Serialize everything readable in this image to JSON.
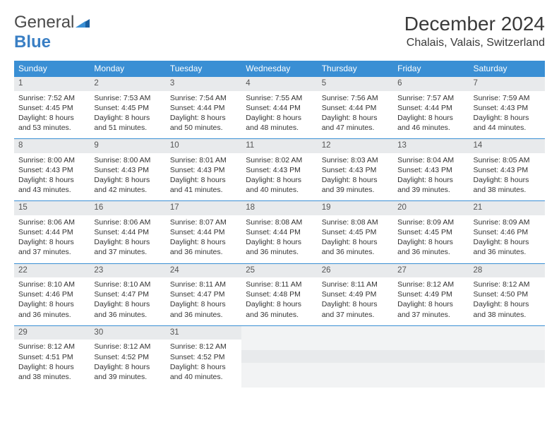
{
  "logo": {
    "general": "General",
    "blue": "Blue"
  },
  "title": "December 2024",
  "location": "Chalais, Valais, Switzerland",
  "colors": {
    "header_bg": "#3a8fd4",
    "header_text": "#ffffff",
    "daynum_bg": "#e8eaec",
    "border": "#3a8fd4",
    "logo_blue": "#3a7fc4"
  },
  "day_headers": [
    "Sunday",
    "Monday",
    "Tuesday",
    "Wednesday",
    "Thursday",
    "Friday",
    "Saturday"
  ],
  "weeks": [
    [
      {
        "n": "1",
        "sr": "Sunrise: 7:52 AM",
        "ss": "Sunset: 4:45 PM",
        "d1": "Daylight: 8 hours",
        "d2": "and 53 minutes."
      },
      {
        "n": "2",
        "sr": "Sunrise: 7:53 AM",
        "ss": "Sunset: 4:45 PM",
        "d1": "Daylight: 8 hours",
        "d2": "and 51 minutes."
      },
      {
        "n": "3",
        "sr": "Sunrise: 7:54 AM",
        "ss": "Sunset: 4:44 PM",
        "d1": "Daylight: 8 hours",
        "d2": "and 50 minutes."
      },
      {
        "n": "4",
        "sr": "Sunrise: 7:55 AM",
        "ss": "Sunset: 4:44 PM",
        "d1": "Daylight: 8 hours",
        "d2": "and 48 minutes."
      },
      {
        "n": "5",
        "sr": "Sunrise: 7:56 AM",
        "ss": "Sunset: 4:44 PM",
        "d1": "Daylight: 8 hours",
        "d2": "and 47 minutes."
      },
      {
        "n": "6",
        "sr": "Sunrise: 7:57 AM",
        "ss": "Sunset: 4:44 PM",
        "d1": "Daylight: 8 hours",
        "d2": "and 46 minutes."
      },
      {
        "n": "7",
        "sr": "Sunrise: 7:59 AM",
        "ss": "Sunset: 4:43 PM",
        "d1": "Daylight: 8 hours",
        "d2": "and 44 minutes."
      }
    ],
    [
      {
        "n": "8",
        "sr": "Sunrise: 8:00 AM",
        "ss": "Sunset: 4:43 PM",
        "d1": "Daylight: 8 hours",
        "d2": "and 43 minutes."
      },
      {
        "n": "9",
        "sr": "Sunrise: 8:00 AM",
        "ss": "Sunset: 4:43 PM",
        "d1": "Daylight: 8 hours",
        "d2": "and 42 minutes."
      },
      {
        "n": "10",
        "sr": "Sunrise: 8:01 AM",
        "ss": "Sunset: 4:43 PM",
        "d1": "Daylight: 8 hours",
        "d2": "and 41 minutes."
      },
      {
        "n": "11",
        "sr": "Sunrise: 8:02 AM",
        "ss": "Sunset: 4:43 PM",
        "d1": "Daylight: 8 hours",
        "d2": "and 40 minutes."
      },
      {
        "n": "12",
        "sr": "Sunrise: 8:03 AM",
        "ss": "Sunset: 4:43 PM",
        "d1": "Daylight: 8 hours",
        "d2": "and 39 minutes."
      },
      {
        "n": "13",
        "sr": "Sunrise: 8:04 AM",
        "ss": "Sunset: 4:43 PM",
        "d1": "Daylight: 8 hours",
        "d2": "and 39 minutes."
      },
      {
        "n": "14",
        "sr": "Sunrise: 8:05 AM",
        "ss": "Sunset: 4:43 PM",
        "d1": "Daylight: 8 hours",
        "d2": "and 38 minutes."
      }
    ],
    [
      {
        "n": "15",
        "sr": "Sunrise: 8:06 AM",
        "ss": "Sunset: 4:44 PM",
        "d1": "Daylight: 8 hours",
        "d2": "and 37 minutes."
      },
      {
        "n": "16",
        "sr": "Sunrise: 8:06 AM",
        "ss": "Sunset: 4:44 PM",
        "d1": "Daylight: 8 hours",
        "d2": "and 37 minutes."
      },
      {
        "n": "17",
        "sr": "Sunrise: 8:07 AM",
        "ss": "Sunset: 4:44 PM",
        "d1": "Daylight: 8 hours",
        "d2": "and 36 minutes."
      },
      {
        "n": "18",
        "sr": "Sunrise: 8:08 AM",
        "ss": "Sunset: 4:44 PM",
        "d1": "Daylight: 8 hours",
        "d2": "and 36 minutes."
      },
      {
        "n": "19",
        "sr": "Sunrise: 8:08 AM",
        "ss": "Sunset: 4:45 PM",
        "d1": "Daylight: 8 hours",
        "d2": "and 36 minutes."
      },
      {
        "n": "20",
        "sr": "Sunrise: 8:09 AM",
        "ss": "Sunset: 4:45 PM",
        "d1": "Daylight: 8 hours",
        "d2": "and 36 minutes."
      },
      {
        "n": "21",
        "sr": "Sunrise: 8:09 AM",
        "ss": "Sunset: 4:46 PM",
        "d1": "Daylight: 8 hours",
        "d2": "and 36 minutes."
      }
    ],
    [
      {
        "n": "22",
        "sr": "Sunrise: 8:10 AM",
        "ss": "Sunset: 4:46 PM",
        "d1": "Daylight: 8 hours",
        "d2": "and 36 minutes."
      },
      {
        "n": "23",
        "sr": "Sunrise: 8:10 AM",
        "ss": "Sunset: 4:47 PM",
        "d1": "Daylight: 8 hours",
        "d2": "and 36 minutes."
      },
      {
        "n": "24",
        "sr": "Sunrise: 8:11 AM",
        "ss": "Sunset: 4:47 PM",
        "d1": "Daylight: 8 hours",
        "d2": "and 36 minutes."
      },
      {
        "n": "25",
        "sr": "Sunrise: 8:11 AM",
        "ss": "Sunset: 4:48 PM",
        "d1": "Daylight: 8 hours",
        "d2": "and 36 minutes."
      },
      {
        "n": "26",
        "sr": "Sunrise: 8:11 AM",
        "ss": "Sunset: 4:49 PM",
        "d1": "Daylight: 8 hours",
        "d2": "and 37 minutes."
      },
      {
        "n": "27",
        "sr": "Sunrise: 8:12 AM",
        "ss": "Sunset: 4:49 PM",
        "d1": "Daylight: 8 hours",
        "d2": "and 37 minutes."
      },
      {
        "n": "28",
        "sr": "Sunrise: 8:12 AM",
        "ss": "Sunset: 4:50 PM",
        "d1": "Daylight: 8 hours",
        "d2": "and 38 minutes."
      }
    ],
    [
      {
        "n": "29",
        "sr": "Sunrise: 8:12 AM",
        "ss": "Sunset: 4:51 PM",
        "d1": "Daylight: 8 hours",
        "d2": "and 38 minutes."
      },
      {
        "n": "30",
        "sr": "Sunrise: 8:12 AM",
        "ss": "Sunset: 4:52 PM",
        "d1": "Daylight: 8 hours",
        "d2": "and 39 minutes."
      },
      {
        "n": "31",
        "sr": "Sunrise: 8:12 AM",
        "ss": "Sunset: 4:52 PM",
        "d1": "Daylight: 8 hours",
        "d2": "and 40 minutes."
      },
      null,
      null,
      null,
      null
    ]
  ]
}
